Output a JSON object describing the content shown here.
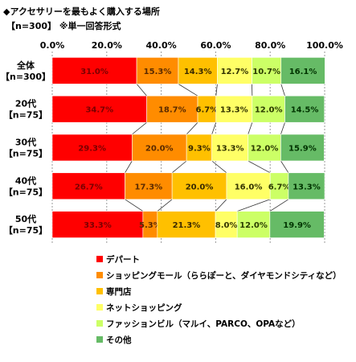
{
  "header": {
    "title": "◆アクセサリーを最もよく購入する場所",
    "subtitle": "【n=300】 ※単一回答形式"
  },
  "chart_data": {
    "type": "bar",
    "orientation": "horizontal",
    "stacked": "percent",
    "categories": [
      {
        "name": "全体",
        "n": "【n=300】"
      },
      {
        "name": "20代",
        "n": "【n=75】"
      },
      {
        "name": "30代",
        "n": "【n=75】"
      },
      {
        "name": "40代",
        "n": "【n=75】"
      },
      {
        "name": "50代",
        "n": "【n=75】"
      }
    ],
    "series": [
      {
        "name": "デパート",
        "color": "#ff0000",
        "label_color": "#7a0000",
        "values": [
          31.0,
          34.7,
          29.3,
          26.7,
          33.3
        ]
      },
      {
        "name": "ショッピングモール（ららぽーと、ダイヤモンドシティなど）",
        "color": "#ff8c00",
        "label_color": "#5a2a00",
        "values": [
          15.3,
          18.7,
          20.0,
          17.3,
          5.3
        ]
      },
      {
        "name": "専門店",
        "color": "#ffc000",
        "label_color": "#3a2a00",
        "values": [
          14.3,
          6.7,
          9.3,
          20.0,
          21.3
        ]
      },
      {
        "name": "ネットショッピング",
        "color": "#ffff66",
        "label_color": "#333300",
        "values": [
          12.7,
          13.3,
          13.3,
          16.0,
          8.0
        ]
      },
      {
        "name": "ファッションビル（マルイ、PARCO、OPAなど）",
        "color": "#ccff66",
        "label_color": "#2a3a00",
        "values": [
          10.7,
          12.0,
          12.0,
          6.7,
          12.0
        ]
      },
      {
        "name": "その他",
        "color": "#66bb66",
        "label_color": "#003300",
        "values": [
          16.1,
          14.5,
          15.9,
          13.3,
          19.9
        ]
      }
    ],
    "value_format": "{v}%",
    "xticks": [
      "0.0%",
      "20.0%",
      "40.0%",
      "60.0%",
      "80.0%",
      "100.0%"
    ],
    "xlim": [
      0,
      100
    ],
    "grid": true,
    "connector_lines": true,
    "legend_position": "bottom"
  }
}
